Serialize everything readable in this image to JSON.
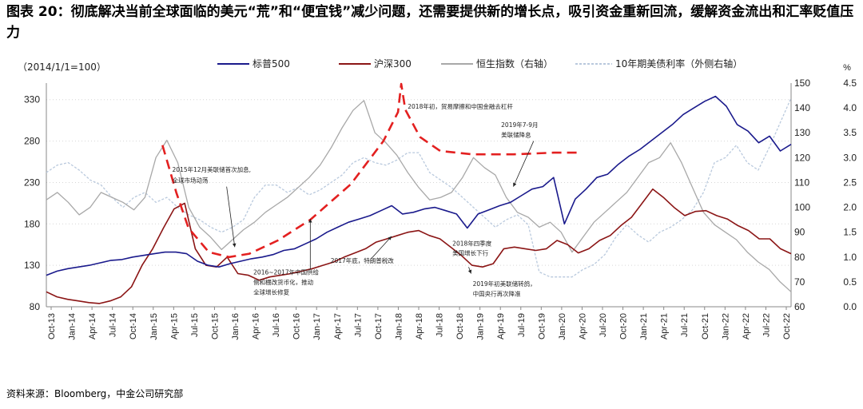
{
  "title": "图表 20：彻底解决当前全球面临的美元“荒”和“便宜钱”减少问题，还需要提供新的增长点，吸引资金重新回流，缓解资金流出和汇率贬值压力",
  "source": "资料来源：Bloomberg，中金公司研究部",
  "chart_data": {
    "type": "line",
    "base_note": "（2014/1/1=100）",
    "left_axis": {
      "ticks": [
        80,
        130,
        180,
        230,
        280,
        330
      ],
      "range": [
        80,
        350
      ]
    },
    "right_axis_1": {
      "ticks": [
        60,
        70,
        80,
        90,
        100,
        110,
        120,
        130,
        140,
        150
      ],
      "range": [
        60,
        150
      ]
    },
    "right_axis_2": {
      "unit": "%",
      "ticks": [
        0.0,
        0.5,
        1.0,
        1.5,
        2.0,
        2.5,
        3.0,
        3.5,
        4.0,
        4.5
      ],
      "range": [
        0.0,
        4.5
      ]
    },
    "x_labels": [
      "Oct-13",
      "Jan-14",
      "Apr-14",
      "Jul-14",
      "Oct-14",
      "Jan-15",
      "Apr-15",
      "Jul-15",
      "Oct-15",
      "Jan-16",
      "Apr-16",
      "Jul-16",
      "Oct-16",
      "Jan-17",
      "Apr-17",
      "Jul-17",
      "Oct-17",
      "Jan-18",
      "Apr-18",
      "Jul-18",
      "Oct-18",
      "Jan-19",
      "Apr-19",
      "Jul-19",
      "Oct-19",
      "Jan-20",
      "Apr-20",
      "Jul-20",
      "Oct-20",
      "Jan-21",
      "Apr-21",
      "Jul-21",
      "Oct-21",
      "Jan-22",
      "Apr-22",
      "Jul-22",
      "Oct-22"
    ],
    "series": [
      {
        "name": "标普500",
        "axis": "left",
        "color": "#1a1a8c",
        "values": [
          118,
          123,
          126,
          128,
          130,
          133,
          136,
          137,
          140,
          142,
          144,
          146,
          146,
          144,
          135,
          130,
          128,
          132,
          135,
          138,
          140,
          143,
          148,
          150,
          156,
          162,
          170,
          176,
          182,
          186,
          190,
          196,
          202,
          192,
          194,
          198,
          200,
          196,
          192,
          175,
          192,
          197,
          202,
          206,
          214,
          222,
          225,
          236,
          180,
          210,
          222,
          236,
          240,
          252,
          262,
          270,
          280,
          290,
          300,
          312,
          320,
          328,
          334,
          322,
          300,
          292,
          278,
          286,
          268,
          276
        ]
      },
      {
        "name": "沪深300",
        "axis": "left",
        "color": "#8b1515",
        "values": [
          98,
          92,
          89,
          87,
          85,
          84,
          87,
          92,
          104,
          130,
          150,
          175,
          198,
          205,
          150,
          130,
          128,
          140,
          120,
          118,
          112,
          116,
          118,
          120,
          123,
          126,
          130,
          134,
          140,
          145,
          150,
          158,
          162,
          166,
          170,
          172,
          166,
          162,
          152,
          142,
          130,
          128,
          132,
          150,
          152,
          150,
          148,
          150,
          160,
          155,
          145,
          150,
          160,
          166,
          178,
          188,
          205,
          222,
          212,
          200,
          190,
          195,
          196,
          190,
          186,
          178,
          172,
          162,
          162,
          150,
          144
        ]
      },
      {
        "name": "恒生指数（右轴）",
        "axis": "right1",
        "color": "#a8a8a8",
        "values": [
          103,
          106,
          102,
          97,
          100,
          106,
          104,
          102,
          99,
          104,
          120,
          127,
          118,
          100,
          92,
          88,
          83,
          87,
          91,
          94,
          98,
          101,
          104,
          108,
          112,
          117,
          124,
          132,
          139,
          143,
          130,
          126,
          121,
          114,
          108,
          103,
          104,
          106,
          112,
          120,
          116,
          113,
          104,
          98,
          96,
          92,
          94,
          90,
          82,
          88,
          94,
          98,
          102,
          106,
          112,
          118,
          120,
          126,
          118,
          108,
          98,
          93,
          90,
          87,
          82,
          78,
          75,
          70,
          66
        ]
      },
      {
        "name": "10年期美债利率（外侧右轴）",
        "axis": "right2",
        "color": "#b9c9dd",
        "dashed": true,
        "values": [
          2.7,
          2.85,
          2.9,
          2.75,
          2.55,
          2.45,
          2.2,
          2.0,
          2.2,
          2.3,
          2.1,
          2.2,
          2.0,
          1.85,
          1.75,
          1.6,
          1.5,
          1.6,
          1.75,
          2.2,
          2.45,
          2.45,
          2.3,
          2.4,
          2.25,
          2.35,
          2.5,
          2.65,
          2.9,
          3.0,
          2.9,
          2.85,
          2.95,
          3.1,
          3.1,
          2.7,
          2.55,
          2.4,
          2.2,
          2.0,
          1.8,
          1.6,
          1.75,
          1.85,
          1.65,
          0.7,
          0.6,
          0.6,
          0.6,
          0.75,
          0.85,
          1.05,
          1.4,
          1.65,
          1.45,
          1.3,
          1.5,
          1.6,
          1.75,
          1.95,
          2.3,
          2.9,
          3.0,
          3.25,
          2.9,
          2.75,
          3.2,
          3.7,
          4.2
        ]
      }
    ],
    "legend": {
      "placement": "top",
      "entries": [
        "标普500",
        "沪深300",
        "恒生指数（右轴）",
        "10年期美债利率（外侧右轴）"
      ]
    },
    "trend_curve": {
      "color": "#e32020",
      "style": "dashed",
      "points": [
        [
          2015.18,
          275
        ],
        [
          2015.35,
          218
        ],
        [
          2015.5,
          175
        ],
        [
          2015.75,
          146
        ],
        [
          2016.0,
          140
        ],
        [
          2016.25,
          144
        ],
        [
          2016.6,
          160
        ],
        [
          2017.0,
          185
        ],
        [
          2017.5,
          228
        ],
        [
          2017.9,
          280
        ],
        [
          2018.08,
          315
        ],
        [
          2018.12,
          349
        ],
        [
          2018.17,
          318
        ],
        [
          2018.35,
          285
        ],
        [
          2018.6,
          268
        ],
        [
          2019.0,
          264
        ],
        [
          2019.5,
          264
        ],
        [
          2020.0,
          266
        ],
        [
          2020.3,
          266
        ]
      ]
    },
    "annotations": [
      {
        "text": "2015年12月美联储首次加息,",
        "x": 2015.3,
        "y": 243
      },
      {
        "text": "全球市场动荡",
        "x": 2015.3,
        "y": 230
      },
      {
        "text": "2016~2017年中国供给",
        "x": 2016.3,
        "y": 119
      },
      {
        "text": "侧和棚改货币化，推动",
        "x": 2016.3,
        "y": 107
      },
      {
        "text": "全球增长修复",
        "x": 2016.3,
        "y": 95
      },
      {
        "text": "2017年底，特朗普税改",
        "x": 2017.25,
        "y": 133
      },
      {
        "text": "2018年初，贸易摩擦和中国金融去杠杆",
        "x": 2018.2,
        "y": 319
      },
      {
        "text": "2018年四季度",
        "x": 2018.75,
        "y": 154
      },
      {
        "text": "美国增长下行",
        "x": 2018.75,
        "y": 142
      },
      {
        "text": "2019年初美联储转鸽，",
        "x": 2019.0,
        "y": 105
      },
      {
        "text": "中国央行再次降准",
        "x": 2019.0,
        "y": 93
      },
      {
        "text": "2019年7-9月",
        "x": 2019.35,
        "y": 297
      },
      {
        "text": "美联储降息",
        "x": 2019.35,
        "y": 285
      }
    ]
  }
}
